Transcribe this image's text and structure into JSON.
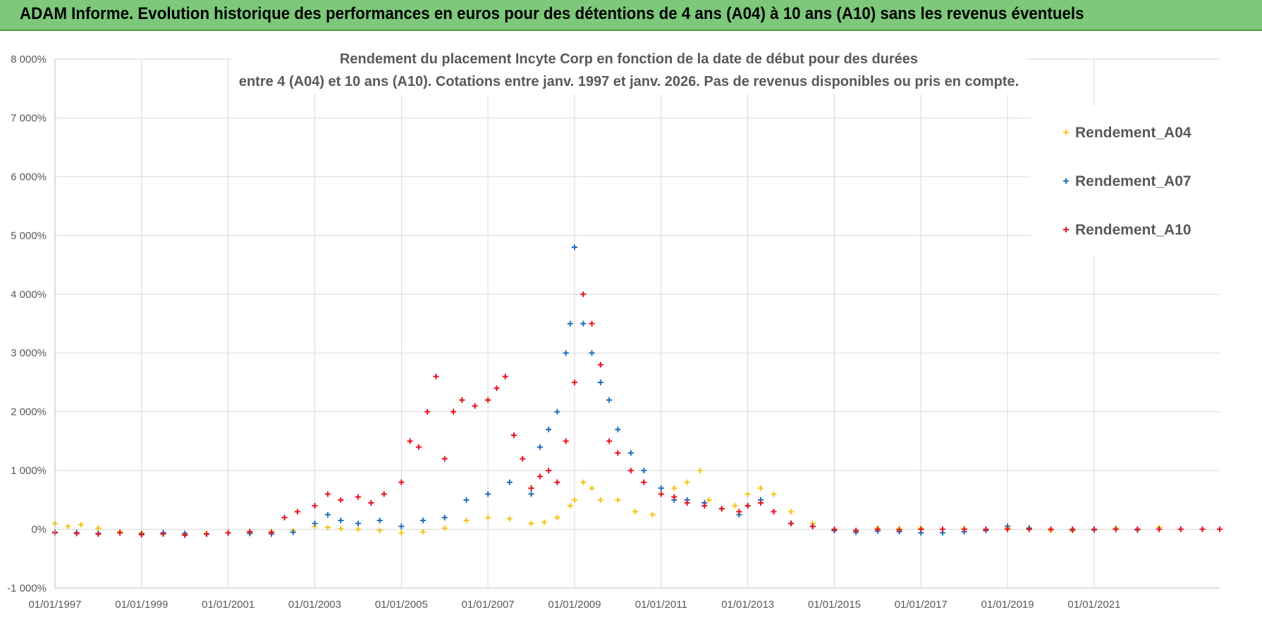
{
  "banner": {
    "title": "ADAM Informe. Evolution historique des performances en euros pour des détentions de 4 ans (A04) à 10 ans (A10) sans les revenus éventuels"
  },
  "colors": {
    "banner_bg": "#7dc87a",
    "a04": "#f5c518",
    "a07": "#1f6fbf",
    "a10": "#e8101a",
    "grid": "#d9d9d9",
    "axis_text": "#595959"
  },
  "chart_data": {
    "type": "scatter",
    "title_line1": "Rendement du placement Incyte Corp en fonction de la date de début pour des durées",
    "title_line2": "entre 4 (A04) et 10 ans (A10).  Cotations entre janv. 1997 et janv. 2026. Pas de revenus disponibles ou pris en compte.",
    "xlabel": "",
    "ylabel": "",
    "xlim": [
      1997.0,
      2023.9
    ],
    "ylim": [
      -1000,
      8000
    ],
    "y_ticks": [
      -1000,
      0,
      1000,
      2000,
      3000,
      4000,
      5000,
      6000,
      7000,
      8000
    ],
    "y_tick_labels": [
      "-1 000%",
      "0%",
      "1 000%",
      "2 000%",
      "3 000%",
      "4 000%",
      "5 000%",
      "6 000%",
      "7 000%",
      "8 000%"
    ],
    "x_ticks": [
      1997,
      1999,
      2001,
      2003,
      2005,
      2007,
      2009,
      2011,
      2013,
      2015,
      2017,
      2019,
      2021
    ],
    "x_tick_labels": [
      "01/01/1997",
      "01/01/1999",
      "01/01/2001",
      "01/01/2003",
      "01/01/2005",
      "01/01/2007",
      "01/01/2009",
      "01/01/2011",
      "01/01/2013",
      "01/01/2015",
      "01/01/2017",
      "01/01/2019",
      "01/01/2021"
    ],
    "legend_position": "top-right",
    "series": [
      {
        "name": "Rendement_A04",
        "x": [
          1997.0,
          1997.3,
          1997.6,
          1998.0,
          1998.5,
          1999.0,
          1999.5,
          2000.0,
          2000.5,
          2001.0,
          2001.5,
          2002.0,
          2002.5,
          2003.0,
          2003.3,
          2003.6,
          2004.0,
          2004.5,
          2005.0,
          2005.5,
          2006.0,
          2006.5,
          2007.0,
          2007.5,
          2008.0,
          2008.3,
          2008.6,
          2008.9,
          2009.0,
          2009.2,
          2009.4,
          2009.6,
          2010.0,
          2010.4,
          2010.8,
          2011.0,
          2011.3,
          2011.6,
          2011.9,
          2012.1,
          2012.4,
          2012.7,
          2013.0,
          2013.3,
          2013.6,
          2014.0,
          2014.5,
          2015.0,
          2015.5,
          2016.0,
          2016.5,
          2017.0,
          2017.5,
          2018.0,
          2018.5,
          2019.0,
          2019.5,
          2020.0,
          2020.5,
          2021.0,
          2021.5,
          2022.0,
          2022.5,
          2023.0,
          2023.5,
          2023.9
        ],
        "y": [
          100,
          50,
          80,
          20,
          -40,
          -60,
          -70,
          -80,
          -70,
          -60,
          -50,
          -40,
          -20,
          50,
          30,
          10,
          0,
          -20,
          -60,
          -40,
          20,
          150,
          200,
          180,
          100,
          120,
          200,
          400,
          500,
          800,
          700,
          500,
          500,
          300,
          250,
          600,
          700,
          800,
          1000,
          500,
          350,
          400,
          600,
          700,
          600,
          300,
          100,
          -20,
          -40,
          20,
          10,
          20,
          0,
          10,
          0,
          20,
          0,
          -20,
          -30,
          0,
          20,
          0,
          30,
          0,
          0,
          0
        ]
      },
      {
        "name": "Rendement_A07",
        "x": [
          1997.0,
          1997.5,
          1998.0,
          1998.5,
          1999.0,
          1999.5,
          2000.0,
          2000.5,
          2001.0,
          2001.5,
          2002.0,
          2002.5,
          2003.0,
          2003.3,
          2003.6,
          2004.0,
          2004.5,
          2005.0,
          2005.5,
          2006.0,
          2006.5,
          2007.0,
          2007.5,
          2008.0,
          2008.2,
          2008.4,
          2008.6,
          2008.8,
          2008.9,
          2009.0,
          2009.2,
          2009.4,
          2009.6,
          2009.8,
          2010.0,
          2010.3,
          2010.6,
          2011.0,
          2011.3,
          2011.6,
          2012.0,
          2012.4,
          2012.8,
          2013.0,
          2013.3,
          2013.6,
          2014.0,
          2014.5,
          2015.0,
          2015.5,
          2016.0,
          2016.5,
          2017.0,
          2017.5,
          2018.0,
          2018.5,
          2019.0,
          2019.5,
          2020.0,
          2020.5,
          2021.0,
          2021.5,
          2022.0,
          2022.5,
          2023.0,
          2023.5,
          2023.9
        ],
        "y": [
          -50,
          -60,
          -70,
          -60,
          -80,
          -60,
          -70,
          -80,
          -60,
          -70,
          -80,
          -50,
          100,
          250,
          150,
          100,
          150,
          50,
          150,
          200,
          500,
          600,
          800,
          600,
          1400,
          1700,
          2000,
          3000,
          3500,
          4800,
          3500,
          3000,
          2500,
          2200,
          1700,
          1300,
          1000,
          700,
          500,
          500,
          450,
          350,
          250,
          400,
          500,
          300,
          100,
          50,
          -20,
          -50,
          -30,
          -40,
          -60,
          -60,
          -40,
          -20,
          50,
          20,
          0,
          -10,
          -10,
          0,
          -10,
          0,
          0,
          0,
          0
        ]
      },
      {
        "name": "Rendement_A10",
        "x": [
          1997.0,
          1997.5,
          1998.0,
          1998.5,
          1999.0,
          1999.5,
          2000.0,
          2000.5,
          2001.0,
          2001.5,
          2002.0,
          2002.3,
          2002.6,
          2003.0,
          2003.3,
          2003.6,
          2004.0,
          2004.3,
          2004.6,
          2005.0,
          2005.2,
          2005.4,
          2005.6,
          2005.8,
          2006.0,
          2006.2,
          2006.4,
          2006.7,
          2007.0,
          2007.2,
          2007.4,
          2007.6,
          2007.8,
          2008.0,
          2008.2,
          2008.4,
          2008.6,
          2008.8,
          2009.0,
          2009.2,
          2009.4,
          2009.6,
          2009.8,
          2010.0,
          2010.3,
          2010.6,
          2011.0,
          2011.3,
          2011.6,
          2012.0,
          2012.4,
          2012.8,
          2013.0,
          2013.3,
          2013.6,
          2014.0,
          2014.5,
          2015.0,
          2015.5,
          2016.0,
          2016.5,
          2017.0,
          2017.5,
          2018.0,
          2018.5,
          2019.0,
          2019.5,
          2020.0,
          2020.5,
          2021.0,
          2021.5,
          2022.0,
          2022.5,
          2023.0,
          2023.5,
          2023.9
        ],
        "y": [
          -60,
          -70,
          -80,
          -60,
          -90,
          -80,
          -100,
          -80,
          -60,
          -40,
          -50,
          200,
          300,
          400,
          600,
          500,
          550,
          450,
          600,
          800,
          1500,
          1400,
          2000,
          2600,
          1200,
          2000,
          2200,
          2100,
          2200,
          2400,
          2600,
          1600,
          1200,
          700,
          900,
          1000,
          800,
          1500,
          2500,
          4000,
          3500,
          2800,
          1500,
          1300,
          1000,
          800,
          600,
          550,
          450,
          400,
          350,
          300,
          400,
          450,
          300,
          100,
          50,
          0,
          -20,
          0,
          -10,
          0,
          0,
          0,
          0,
          0,
          0,
          0,
          0,
          0,
          0,
          0,
          0,
          0,
          0,
          0
        ]
      }
    ]
  }
}
